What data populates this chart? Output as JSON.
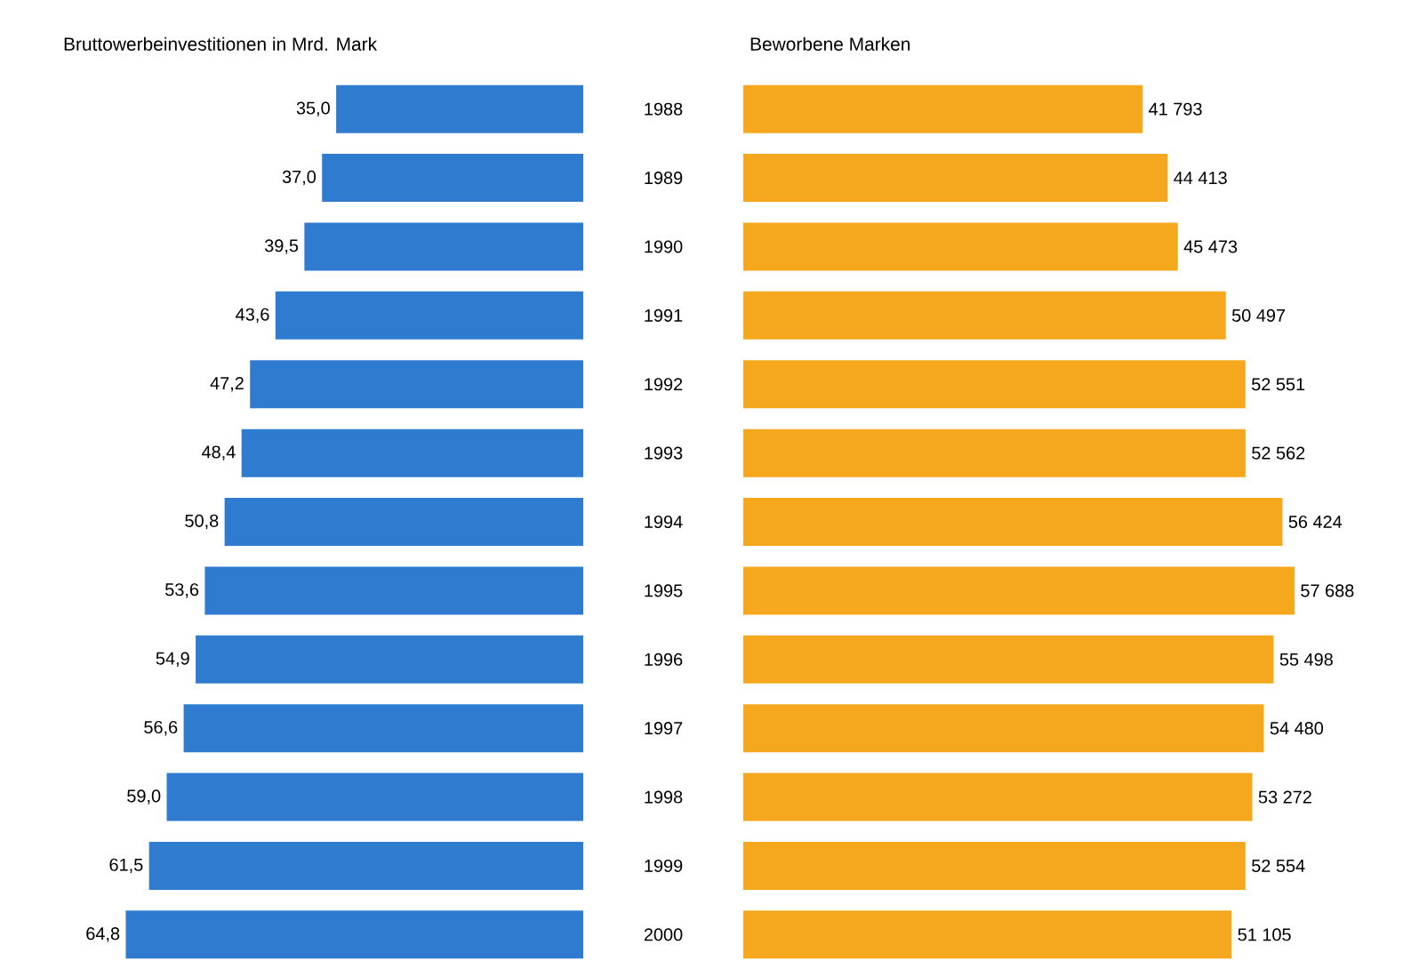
{
  "chart_data": [
    {
      "type": "bar",
      "orientation": "horizontal",
      "title": "Bruttowerbeinvestitionen in Mrd. Mark",
      "categories": [
        "1988",
        "1989",
        "1990",
        "1991",
        "1992",
        "1993",
        "1994",
        "1995",
        "1996",
        "1997",
        "1998",
        "1999",
        "2000"
      ],
      "values": [
        35.0,
        37.0,
        39.5,
        43.6,
        47.2,
        48.4,
        50.8,
        53.6,
        54.9,
        56.6,
        59.0,
        61.5,
        64.8
      ],
      "value_labels": [
        "35,0",
        "37,0",
        "39,5",
        "43,6",
        "47,2",
        "48,4",
        "50,8",
        "53,6",
        "54,9",
        "56,6",
        "59,0",
        "61,5",
        "64,8"
      ],
      "color": "#2f7bd0",
      "tick_labels": false
    },
    {
      "type": "bar",
      "orientation": "horizontal",
      "title": "Beworbene Marken",
      "categories": [
        "1988",
        "1989",
        "1990",
        "1991",
        "1992",
        "1993",
        "1994",
        "1995",
        "1996",
        "1997",
        "1998",
        "1999",
        "2000"
      ],
      "values": [
        41793,
        44413,
        45473,
        50497,
        52551,
        52562,
        56424,
        57688,
        55498,
        54480,
        53272,
        52554,
        51105
      ],
      "value_labels": [
        "41 793",
        "44 413",
        "45 473",
        "50 497",
        "52 551",
        "52 562",
        "56 424",
        "57 688",
        "55 498",
        "54 480",
        "53 272",
        "52 554",
        "51 105"
      ],
      "color": "#f5a81e",
      "tick_labels": "y"
    }
  ]
}
